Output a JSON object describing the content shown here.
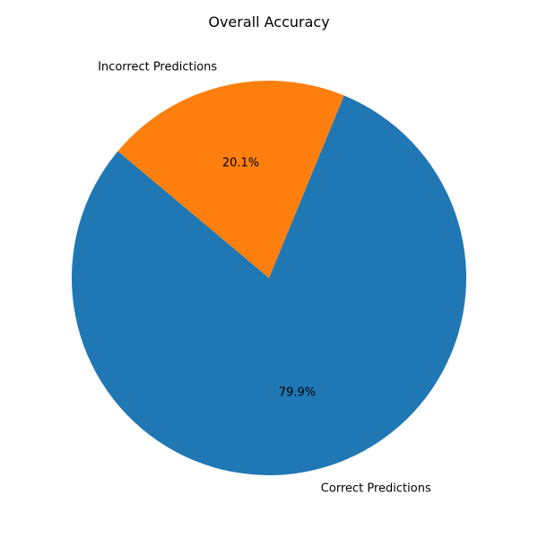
{
  "chart_data": {
    "type": "pie",
    "title": "Overall Accuracy",
    "slices": [
      {
        "label": "Correct Predictions",
        "value": 79.9,
        "pct_label": "79.9%",
        "color": "#1f77b4"
      },
      {
        "label": "Incorrect Predictions",
        "value": 20.1,
        "pct_label": "20.1%",
        "color": "#ff7f0e"
      }
    ],
    "start_angle_deg": 140,
    "direction": "counterclockwise"
  }
}
